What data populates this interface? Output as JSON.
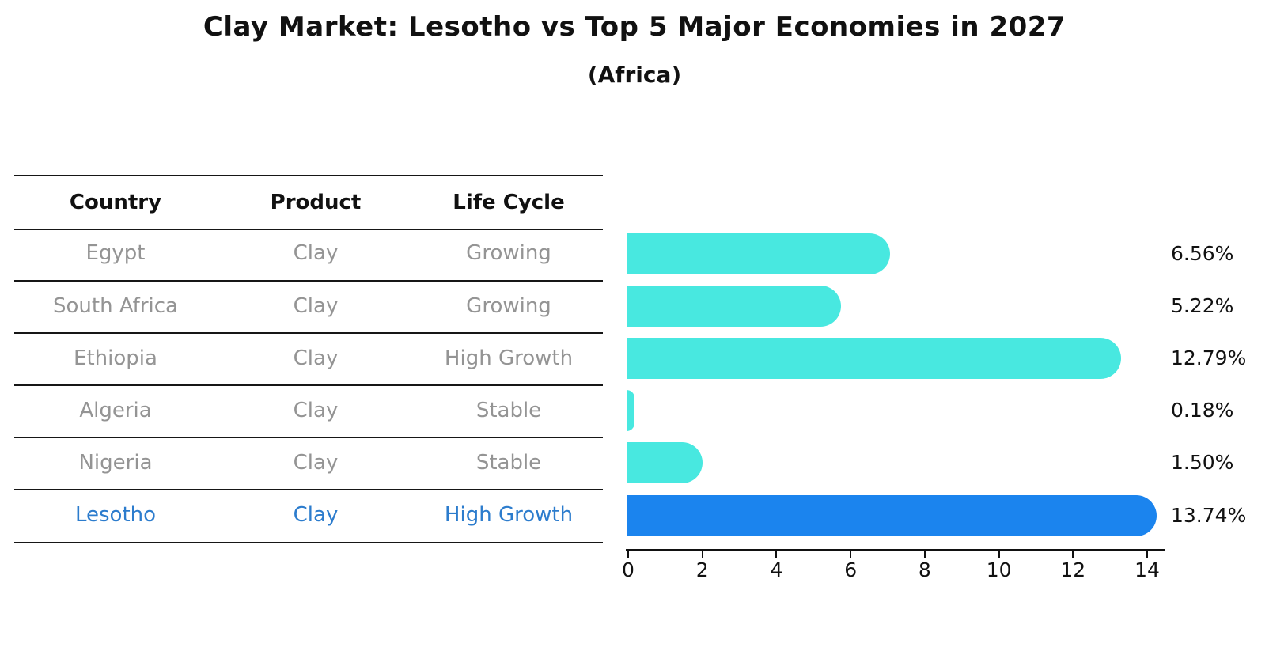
{
  "title": "Clay Market: Lesotho vs Top 5 Major Economies in 2027",
  "subtitle": "(Africa)",
  "table": {
    "headers": [
      "Country",
      "Product",
      "Life Cycle"
    ]
  },
  "rows": [
    {
      "country": "Egypt",
      "product": "Clay",
      "life_cycle": "Growing",
      "value": 6.56,
      "value_label": "6.56%",
      "highlight": false
    },
    {
      "country": "South Africa",
      "product": "Clay",
      "life_cycle": "Growing",
      "value": 5.22,
      "value_label": "5.22%",
      "highlight": false
    },
    {
      "country": "Ethiopia",
      "product": "Clay",
      "life_cycle": "High Growth",
      "value": 12.79,
      "value_label": "12.79%",
      "highlight": false
    },
    {
      "country": "Algeria",
      "product": "Clay",
      "life_cycle": "Stable",
      "value": 0.18,
      "value_label": "0.18%",
      "highlight": false
    },
    {
      "country": "Nigeria",
      "product": "Clay",
      "life_cycle": "Stable",
      "value": 1.5,
      "value_label": "1.50%",
      "highlight": false
    },
    {
      "country": "Lesotho",
      "product": "Clay",
      "life_cycle": "High Growth",
      "value": 13.74,
      "value_label": "13.74%",
      "highlight": true
    }
  ],
  "chart_data": {
    "type": "bar",
    "orientation": "horizontal",
    "title": "Clay Market: Lesotho vs Top 5 Major Economies in 2027",
    "subtitle": "(Africa)",
    "categories": [
      "Egypt",
      "South Africa",
      "Ethiopia",
      "Algeria",
      "Nigeria",
      "Lesotho"
    ],
    "values": [
      6.56,
      5.22,
      12.79,
      0.18,
      1.5,
      13.74
    ],
    "value_labels": [
      "6.56%",
      "5.22%",
      "12.79%",
      "0.18%",
      "1.50%",
      "13.74%"
    ],
    "x_ticks": [
      0,
      2,
      4,
      6,
      8,
      10,
      12,
      14
    ],
    "xlim": [
      0,
      14.5
    ],
    "grid": false,
    "legend": false,
    "unit": "percent"
  },
  "colors": {
    "bar_color": "#48e8e0",
    "highlight_bar_color": "#1b84ee",
    "highlight_text_color": "#2c7ccd",
    "text_color": "#111111",
    "muted_text_color": "#949494"
  }
}
